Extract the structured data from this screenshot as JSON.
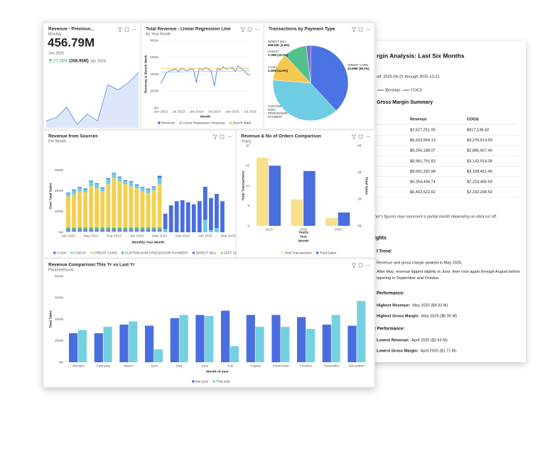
{
  "kpi": {
    "title": "Revenue - Previous...",
    "subtitle": "Monthly",
    "value": "456.79M",
    "period": "Jan 2025",
    "change": "27.26%",
    "previous": "(358.95M)",
    "previous_period": "Jan 2024",
    "sparkline": {
      "color": "#5b86e5",
      "values": [
        57,
        86,
        171,
        29,
        114,
        57,
        354,
        314,
        371,
        457
      ]
    }
  },
  "chart_data": [
    {
      "type": "line",
      "title": "Total Revenue - Linear Regression Line",
      "subtitle": "By Year Month",
      "xlabel": "Month",
      "ylabel": "Revenue & Bench Mark",
      "grid": true,
      "legend": "bottom",
      "categories": [
        "Jan 2023",
        null,
        null,
        null,
        null,
        null,
        "Jul 2023",
        null,
        null,
        null,
        null,
        null,
        "Jan 2024",
        null,
        null,
        null,
        null,
        null,
        "Jul 2024",
        null,
        null,
        null,
        null,
        null,
        "Jan 2025",
        null,
        null,
        null,
        null,
        null,
        "Jul 2025"
      ],
      "ylim": [
        0,
        800
      ],
      "yticks": [
        {
          "value": 0,
          "label": "0M"
        },
        {
          "value": 200,
          "label": "200M"
        },
        {
          "value": 400,
          "label": "400M"
        },
        {
          "value": 600,
          "label": "600M"
        },
        {
          "value": 800,
          "label": "800M"
        }
      ],
      "series": [
        {
          "name": "Revenue",
          "color": "#3d6fe0",
          "values": [
            290,
            350,
            420,
            440,
            450,
            460,
            430,
            470,
            450,
            440,
            460,
            455,
            300,
            470,
            450,
            480,
            460,
            440,
            260,
            470,
            450,
            490,
            460,
            470,
            480,
            430,
            500,
            470,
            440,
            400,
            390
          ]
        },
        {
          "name": "Linear Regression Revenue",
          "color": "#86c9ef",
          "values": [
            425,
            425.5,
            426,
            426.5,
            427,
            427.5,
            428,
            428.5,
            429,
            429.5,
            430,
            430.5,
            431,
            431.5,
            432,
            432.5,
            433,
            433.5,
            434,
            434.5,
            435,
            435.5,
            436,
            436.5,
            437,
            437.5,
            438,
            438.5,
            439,
            439.5,
            440
          ]
        },
        {
          "name": "Bench Mark",
          "color": "#f2c14e",
          "values": [
            470,
            470,
            470,
            470,
            470,
            470,
            470,
            470,
            470,
            470,
            470,
            470,
            470,
            470,
            470,
            470,
            470,
            470,
            470,
            470,
            470,
            470,
            470,
            470,
            470,
            470,
            470,
            470,
            470,
            470,
            470
          ]
        }
      ]
    },
    {
      "type": "pie",
      "title": "Transactions by Payment Type",
      "categories": [
        "CREDIT CARD",
        "CUSTOM NON-PROCESSOR PAYMENT",
        "CASH",
        "CHECK",
        "DIRECT BILL"
      ],
      "values": [
        38.1,
        38.2,
        11.9,
        10.0,
        1.8
      ],
      "value_labels": [
        "10.59M (38.1%)",
        null,
        "3.30M (11.9%)",
        "2.79M (10.0%)",
        "506.62K (1.8%)"
      ],
      "colors": [
        "#4a72e3",
        "#6fcde3",
        "#f5c94f",
        "#52c08a",
        "#7f62e0"
      ]
    },
    {
      "type": "bar",
      "stacked": true,
      "title": "Revenue from Sources",
      "subtitle": "Per Month",
      "xlabel": "Monthly Year Month",
      "ylabel": "Sum Total Sales",
      "legend": "bottom",
      "categories": [
        "Jan 2023",
        null,
        null,
        null,
        "May 2023",
        null,
        null,
        null,
        "Sep 2023",
        null,
        null,
        null,
        "Jan 2024",
        null,
        null,
        null,
        "May 2024",
        null,
        null,
        null,
        "Sep 2024",
        null,
        null,
        null,
        "Jan 2025",
        null,
        null,
        null,
        "May 2025"
      ],
      "ylim": [
        0,
        700
      ],
      "yticks": [
        {
          "value": 0,
          "label": "0M"
        },
        {
          "value": 200,
          "label": "200M"
        },
        {
          "value": 400,
          "label": "400M"
        },
        {
          "value": 600,
          "label": "600M"
        }
      ],
      "series": [
        {
          "name": "CASH",
          "color": "#4a6ee0",
          "values": [
            8,
            8,
            8,
            8,
            8,
            8,
            8,
            8,
            8,
            8,
            8,
            8,
            8,
            8,
            8,
            8,
            20,
            150,
            260,
            300,
            310,
            290,
            270,
            300,
            320,
            310,
            330,
            300,
            null
          ]
        },
        {
          "name": "CHECK",
          "color": "#6fcde3",
          "values": [
            30,
            40,
            35,
            30,
            45,
            40,
            30,
            50,
            40,
            35,
            30,
            40,
            30,
            35,
            40,
            30,
            60,
            30,
            0,
            0,
            0,
            0,
            0,
            0,
            120,
            20,
            40,
            0,
            null
          ]
        },
        {
          "name": "CREDIT CARD",
          "color": "#f5cf4f",
          "values": [
            300,
            320,
            350,
            340,
            400,
            380,
            350,
            420,
            480,
            450,
            420,
            400,
            380,
            350,
            330,
            360,
            420,
            0,
            0,
            0,
            0,
            0,
            0,
            0,
            0,
            0,
            0,
            0,
            null
          ]
        },
        {
          "name": "CUSTOM NON-PROCESSOR PAYMENT",
          "color": "#52c08a",
          "values": [
            20,
            20,
            20,
            20,
            20,
            20,
            20,
            20,
            20,
            20,
            20,
            20,
            20,
            20,
            20,
            20,
            20,
            0,
            0,
            0,
            0,
            0,
            0,
            0,
            0,
            0,
            0,
            0,
            null
          ]
        },
        {
          "name": "DIRECT BILL",
          "color": "#7f62e0",
          "values": [
            15,
            15,
            15,
            15,
            15,
            15,
            15,
            15,
            15,
            15,
            15,
            15,
            15,
            15,
            15,
            15,
            15,
            0,
            0,
            0,
            0,
            0,
            0,
            0,
            0,
            0,
            0,
            0,
            null
          ]
        },
        {
          "name": "GIFT CARD",
          "color": "#9be07f",
          "values": [
            10,
            10,
            10,
            10,
            10,
            10,
            10,
            10,
            10,
            10,
            10,
            10,
            10,
            10,
            10,
            10,
            10,
            0,
            0,
            0,
            0,
            0,
            0,
            0,
            0,
            0,
            0,
            0,
            null
          ]
        }
      ]
    },
    {
      "type": "bar",
      "title": "Revenue & No of Orders Comparison",
      "subtitle": "Yearly",
      "xlabel": [
        "Yearly",
        "Year",
        "Month"
      ],
      "ylabel": "Total Transactions",
      "y2label": "Total Sales",
      "legend": "bottom",
      "categories": [
        "2023",
        "2024",
        "2025"
      ],
      "ylim": [
        0,
        20
      ],
      "yticks": [
        0,
        5,
        10,
        15,
        20
      ],
      "y2lim": [
        0,
        6
      ],
      "y2ticks": [
        {
          "value": 0,
          "label": "0B"
        },
        {
          "value": 2,
          "label": "2B"
        },
        {
          "value": 4,
          "label": "4B"
        },
        {
          "value": 6,
          "label": "6B"
        }
      ],
      "series": [
        {
          "name": "Total Transactions",
          "color": "#f8e08c",
          "values": [
            17,
            6.6,
            2
          ]
        },
        {
          "name": "Total Sales",
          "color": "#4a6ee0",
          "axis": "y2",
          "values": [
            4.5,
            4.1,
            1
          ]
        }
      ]
    },
    {
      "type": "bar",
      "title": "Revenue Comparison:This Yr vs Last Yr",
      "subtitle": "Parameterized",
      "xlabel": "Month of year",
      "ylabel": "Total Sales",
      "legend": "bottom",
      "categories": [
        "January",
        "February",
        "March",
        "April",
        "May",
        "June",
        "July",
        "August",
        "September",
        "October",
        "November",
        "December"
      ],
      "ylim": [
        0,
        800
      ],
      "yticks": [
        {
          "value": 0,
          "label": "0M"
        },
        {
          "value": 200,
          "label": "200M"
        },
        {
          "value": 400,
          "label": "400M"
        },
        {
          "value": 600,
          "label": "600M"
        },
        {
          "value": 800,
          "label": "800M"
        }
      ],
      "series": [
        {
          "name": "last year",
          "color": "#4a6ee0",
          "values": [
            270,
            270,
            350,
            340,
            410,
            440,
            480,
            440,
            440,
            420,
            350,
            340
          ]
        },
        {
          "name": "This year",
          "color": "#74d1e0",
          "values": [
            300,
            330,
            380,
            120,
            440,
            430,
            150,
            330,
            330,
            310,
            440,
            570
          ]
        }
      ]
    }
  ],
  "report": {
    "title": "rgin Analysis: Last Six Months",
    "period": "od: 2025-04-21 through 2025-10-21",
    "legend": [
      "Revenue",
      "COGS"
    ],
    "table_title": "Gross Margin Summary",
    "table": {
      "header": [
        "Revenue",
        "COGS"
      ],
      "rows": [
        [
          "$2,627,251.05",
          "$917,138.42"
        ],
        [
          "$9,323,569.13",
          "$3,276,613.60"
        ],
        [
          "$8,256,188.07",
          "$2,886,667.45"
        ],
        [
          "$8,961,791.83",
          "$3,142,914.08"
        ],
        [
          "$9,051,292.98",
          "$3,158,451.45"
        ],
        [
          "$6,354,494.74",
          "$2,224,465.69"
        ],
        [
          "$6,402,622.62",
          "$2,232,296.53"
        ]
      ]
    },
    "note": "ber's figures may represent a partial month depending on data cut off.",
    "section": "ights",
    "trend_heading": "l Trend:",
    "trend": [
      "Revenue and gross margin peaked in May 2025.",
      "After May, revenue dipped slightly in June, then rose again through August before tapering in September and October."
    ],
    "best_heading": "Performance:",
    "best": [
      {
        "label": "Highest Revenue:",
        "text": "May 2025 ($9.32 M)"
      },
      {
        "label": "Highest Gross Margin:",
        "text": "May 2025 ($6.05 M)"
      }
    ],
    "worst_heading": "t Performance:",
    "worst": [
      {
        "label": "Lowest Revenue:",
        "text": "April 2025 ($2.63 M)"
      },
      {
        "label": "Lowest Gross Margin:",
        "text": "April 2025 ($1.71 M)"
      }
    ]
  }
}
